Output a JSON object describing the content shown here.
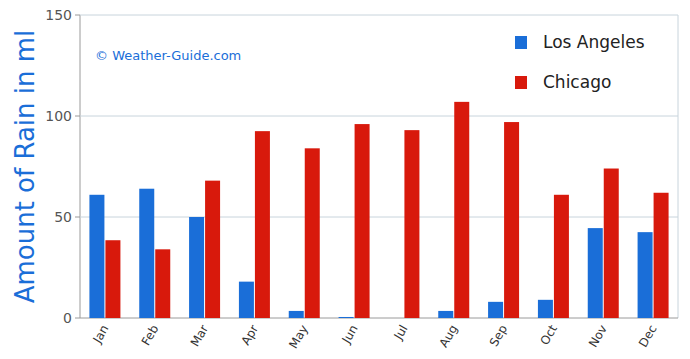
{
  "chart_data": {
    "type": "bar",
    "y_label": "Amount of Rain in ml",
    "annotations": [
      "© Weather-Guide.com"
    ],
    "categories": [
      "Jan",
      "Feb",
      "Mar",
      "Apr",
      "May",
      "Jun",
      "Jul",
      "Aug",
      "Sep",
      "Oct",
      "Nov",
      "Dec"
    ],
    "series": [
      {
        "name": "Los Angeles",
        "color": "#1a6ed8",
        "values": [
          61,
          64,
          50,
          18,
          3.5,
          0.5,
          0,
          3.5,
          8,
          9,
          44.5,
          42.5
        ]
      },
      {
        "name": "Chicago",
        "color": "#d8190c",
        "values": [
          38.5,
          34,
          68,
          92.5,
          84,
          96,
          93,
          107,
          97,
          61,
          74,
          62
        ]
      }
    ],
    "ylim": [
      0,
      150
    ],
    "yticks": [
      0,
      50,
      100,
      150
    ],
    "grid": true,
    "legend": "top-right"
  }
}
